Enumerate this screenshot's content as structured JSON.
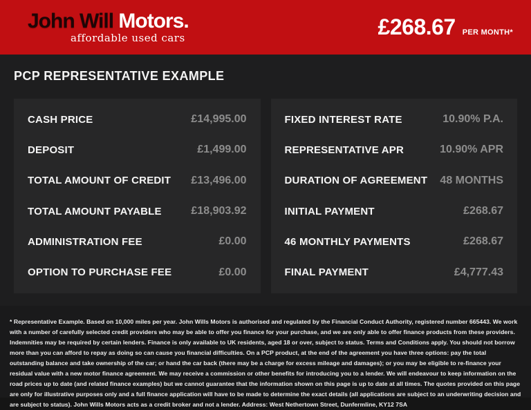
{
  "header": {
    "logo": {
      "name_dark": "John Will",
      "name_light": " Motors.",
      "tagline": "affordable used cars"
    },
    "price": {
      "amount": "£268.67",
      "suffix": "PER MONTH*"
    }
  },
  "section": {
    "title": "PCP REPRESENTATIVE EXAMPLE"
  },
  "tables": {
    "left": {
      "rows": [
        {
          "label": "CASH PRICE",
          "value": "£14,995.00"
        },
        {
          "label": "DEPOSIT",
          "value": "£1,499.00"
        },
        {
          "label": "TOTAL AMOUNT OF CREDIT",
          "value": "£13,496.00"
        },
        {
          "label": "TOTAL AMOUNT PAYABLE",
          "value": "£18,903.92"
        },
        {
          "label": "ADMINISTRATION FEE",
          "value": "£0.00"
        },
        {
          "label": "OPTION TO PURCHASE FEE",
          "value": "£0.00"
        }
      ]
    },
    "right": {
      "rows": [
        {
          "label": "FIXED INTEREST RATE",
          "value": "10.90% P.A."
        },
        {
          "label": "REPRESENTATIVE APR",
          "value": "10.90% APR"
        },
        {
          "label": "DURATION OF AGREEMENT",
          "value": "48 MONTHS"
        },
        {
          "label": "INITIAL PAYMENT",
          "value": "£268.67"
        },
        {
          "label": "46 MONTHLY PAYMENTS",
          "value": "£268.67"
        },
        {
          "label": "FINAL PAYMENT",
          "value": "£4,777.43"
        }
      ]
    }
  },
  "footer": {
    "disclaimer": "* Representative Example. Based on 10,000 miles per year. John Wills Motors is authorised and regulated by the Financial Conduct Authority, registered number 665443. We work with a number of carefully selected credit providers who may be able to offer you finance for your purchase, and we are only able to offer finance products from these providers. Indemnities may be required by certain lenders. Finance is only available to UK residents, aged 18 or over, subject to status. Terms and Conditions apply. You should not borrow more than you can afford to repay as doing so can cause you financial difficulties. On a PCP product, at the end of the agreement you have three options: pay the total outstanding balance and take ownership of the car; or hand the car back (there may be a charge for excess mileage and damages); or you may be eligible to re-finance your residual value with a new motor finance agreement. We may receive a commission or other benefits for introducing you to a lender. We will endeavour to keep information on the road prices up to date (and related finance examples) but we cannot guarantee that the information shown on this page is up to date at all times. The quotes provided on this page are only for illustrative purposes only and a full finance application will have to be made to determine the exact details (all applications are subject to an underwriting decision and are subject to status). John Wills Motors acts as a credit broker and not a lender. Address: West Nethertown Street, Dunfermline, KY12 7SA"
  },
  "colors": {
    "brand_red": "#c10f12",
    "section_bg": "#1e1e1f",
    "panel_bg": "#272728",
    "footer_bg": "#1a1a1b",
    "label_white": "#f5f5f5",
    "value_gray": "#8d8d8d"
  }
}
